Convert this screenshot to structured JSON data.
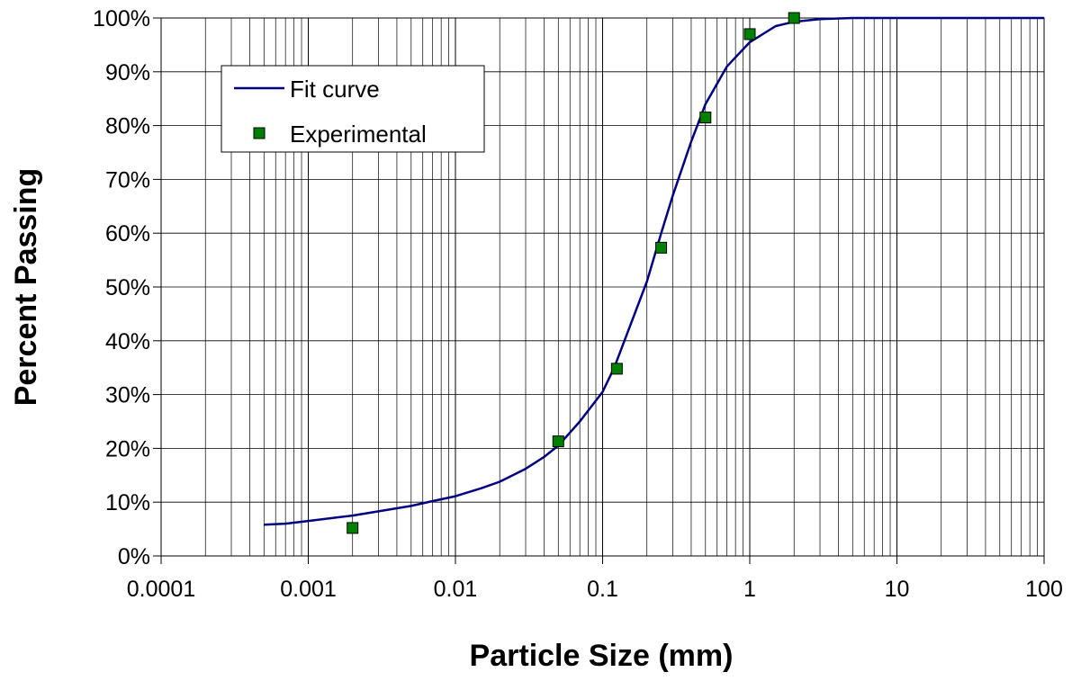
{
  "chart_data": {
    "type": "scatter",
    "xlabel": "Particle Size (mm)",
    "ylabel": "Percent Passing",
    "x_scale": "log",
    "xlim": [
      0.0001,
      100
    ],
    "ylim": [
      0,
      100
    ],
    "x_ticks": [
      0.0001,
      0.001,
      0.01,
      0.1,
      1,
      10,
      100
    ],
    "x_tick_labels": [
      "0.0001",
      "0.001",
      "0.01",
      "0.1",
      "1",
      "10",
      "100"
    ],
    "y_ticks": [
      0,
      10,
      20,
      30,
      40,
      50,
      60,
      70,
      80,
      90,
      100
    ],
    "y_tick_labels": [
      "0%",
      "10%",
      "20%",
      "30%",
      "40%",
      "50%",
      "60%",
      "70%",
      "80%",
      "90%",
      "100%"
    ],
    "grid": true,
    "legend": {
      "placement": "top-left"
    },
    "series": [
      {
        "name": "Fit curve",
        "kind": "line",
        "color": "#000080",
        "x": [
          0.0005,
          0.0007,
          0.001,
          0.002,
          0.003,
          0.005,
          0.007,
          0.01,
          0.015,
          0.02,
          0.03,
          0.04,
          0.05,
          0.07,
          0.1,
          0.12,
          0.15,
          0.2,
          0.25,
          0.3,
          0.4,
          0.5,
          0.7,
          1,
          1.5,
          2,
          3,
          5,
          10,
          30,
          100
        ],
        "y": [
          5.8,
          6,
          6.5,
          7.5,
          8.3,
          9.3,
          10.2,
          11.1,
          12.6,
          13.8,
          16.2,
          18.4,
          20.5,
          25,
          30.5,
          35,
          42,
          51,
          60,
          67,
          77,
          84,
          91,
          95.5,
          98.5,
          99.3,
          99.8,
          100,
          100,
          100,
          100
        ]
      },
      {
        "name": "Experimental",
        "kind": "scatter",
        "color": "#008000",
        "x": [
          0.002,
          0.05,
          0.125,
          0.25,
          0.5,
          1,
          2
        ],
        "y": [
          5.2,
          21.3,
          34.8,
          57.3,
          81.5,
          97,
          100
        ]
      }
    ]
  }
}
